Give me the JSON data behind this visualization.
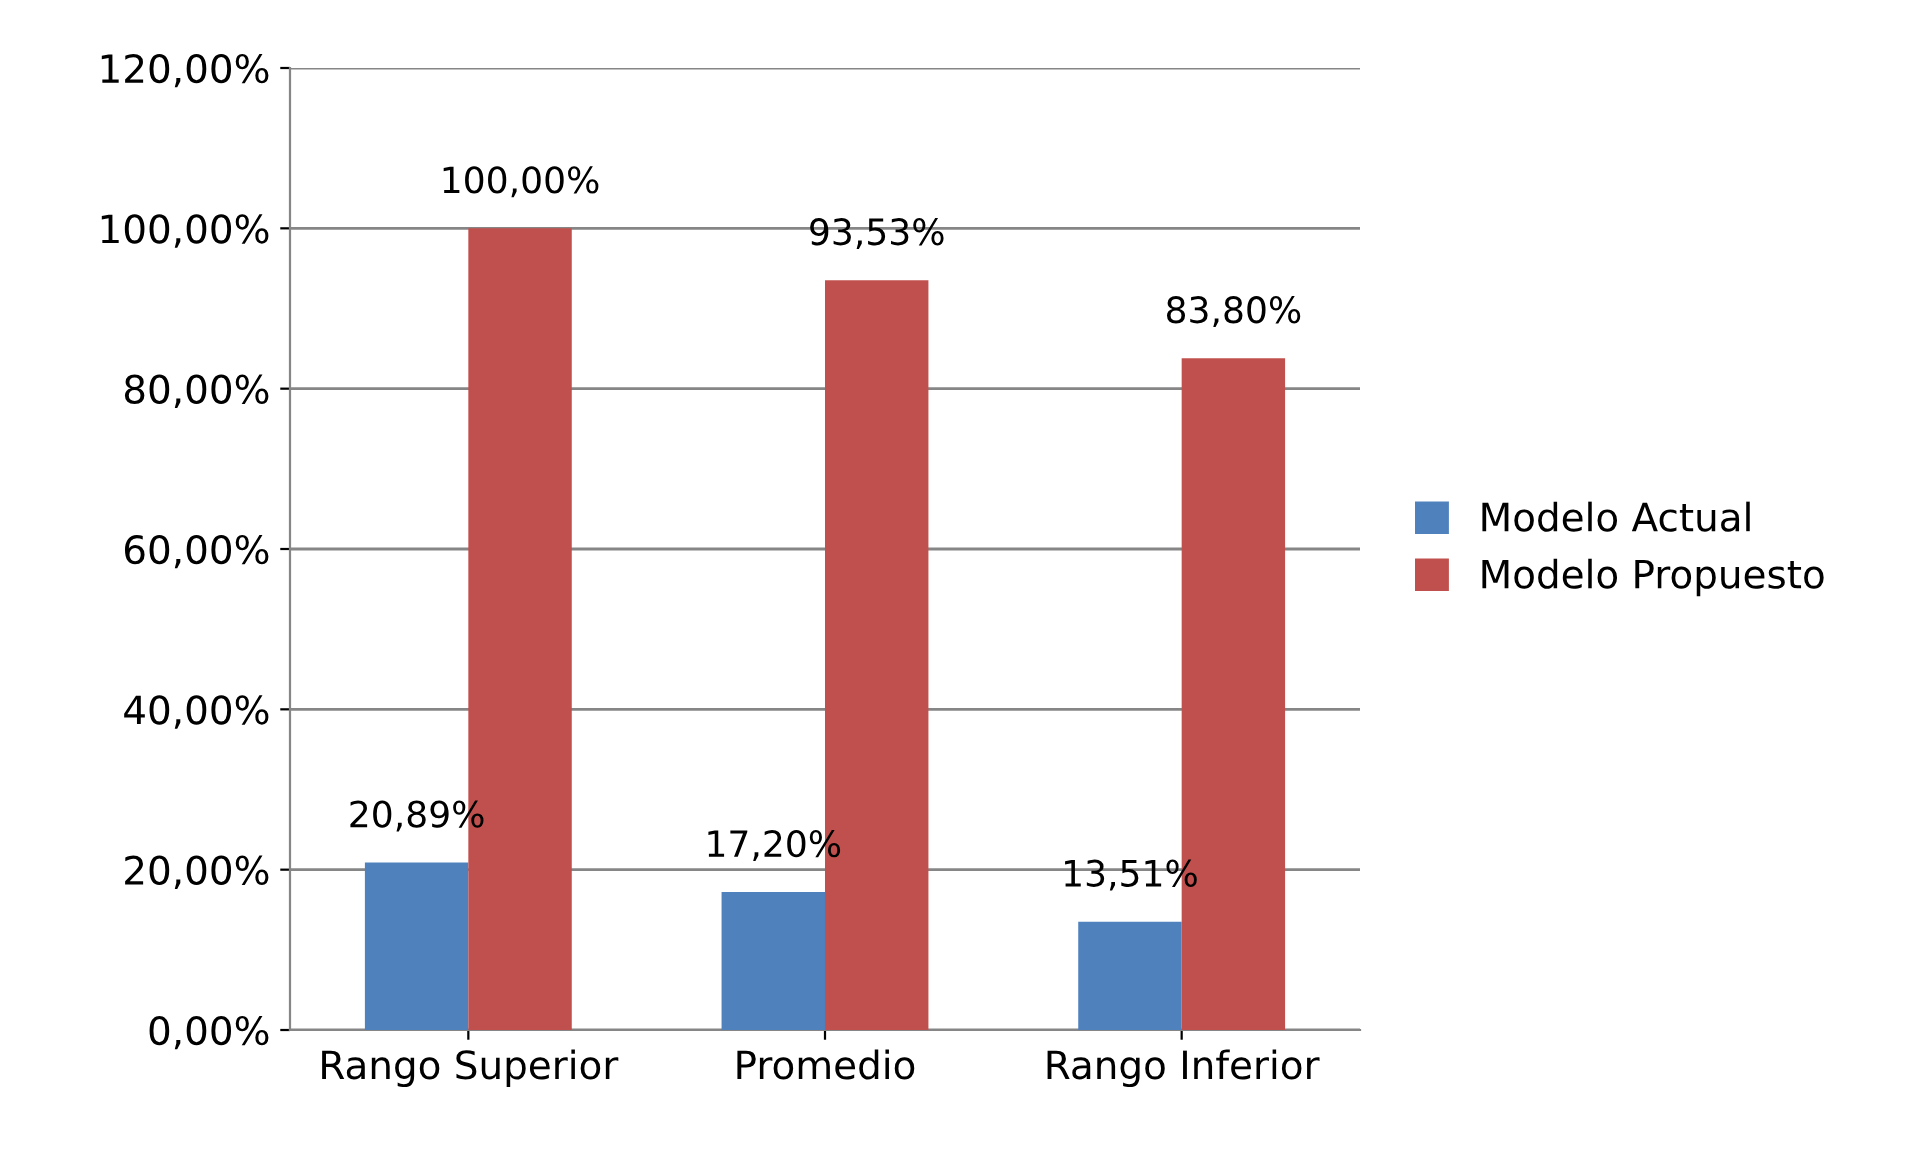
{
  "chart_data": {
    "type": "bar",
    "categories": [
      "Rango Superior",
      "Promedio",
      "Rango Inferior"
    ],
    "series": [
      {
        "name": "Modelo Actual",
        "color": "#4f81bd",
        "values": [
          20.89,
          17.2,
          13.51
        ],
        "value_labels": [
          "20,89%",
          "17,20%",
          "13,51%"
        ]
      },
      {
        "name": "Modelo Propuesto",
        "color": "#c0504d",
        "values": [
          100.0,
          93.53,
          83.8
        ],
        "value_labels": [
          "100,00%",
          "93,53%",
          "83,80%"
        ]
      }
    ],
    "ylim": [
      0,
      120
    ],
    "yticks": [
      {
        "value": 0,
        "label": "0,00%"
      },
      {
        "value": 20,
        "label": "20,00%"
      },
      {
        "value": 40,
        "label": "40,00%"
      },
      {
        "value": 60,
        "label": "60,00%"
      },
      {
        "value": 80,
        "label": "80,00%"
      },
      {
        "value": 100,
        "label": "100,00%"
      },
      {
        "value": 120,
        "label": "120,00%"
      }
    ],
    "grid": "y",
    "legend": "right"
  }
}
